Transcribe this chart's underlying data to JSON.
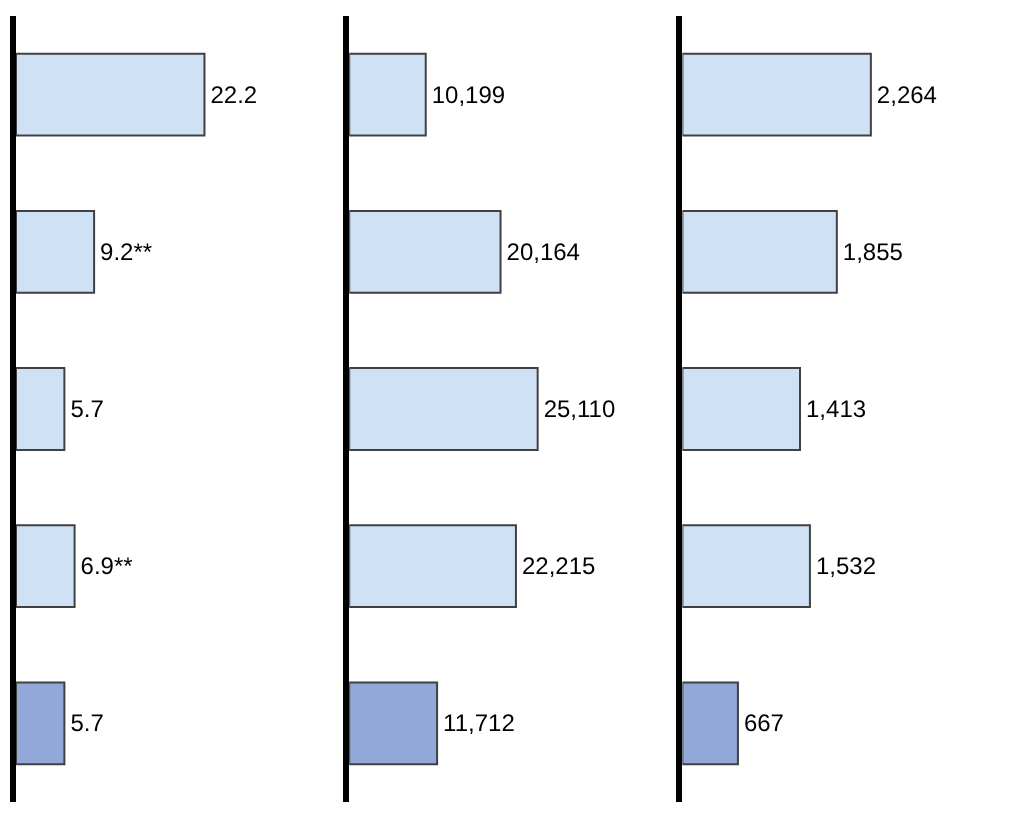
{
  "chart_data": [
    {
      "type": "bar",
      "orientation": "horizontal",
      "categories": [
        null,
        null,
        null,
        null,
        null
      ],
      "values": [
        22.2,
        9.2,
        5.7,
        6.9,
        5.7
      ],
      "value_labels": [
        "22.2",
        "9.2**",
        "5.7",
        "6.9**",
        "5.7"
      ],
      "colors": [
        "#cfe2f5",
        "#cfe2f5",
        "#cfe2f5",
        "#cfe2f5",
        "#91a8d8"
      ],
      "tick_labels": false
    },
    {
      "type": "bar",
      "orientation": "horizontal",
      "categories": [
        null,
        null,
        null,
        null,
        null
      ],
      "values": [
        10199,
        20164,
        25110,
        22215,
        11712
      ],
      "value_labels": [
        "10,199",
        "20,164",
        "25,110",
        "22,215",
        "11,712"
      ],
      "colors": [
        "#cfe2f5",
        "#cfe2f5",
        "#cfe2f5",
        "#cfe2f5",
        "#91a8d8"
      ],
      "tick_labels": false
    },
    {
      "type": "bar",
      "orientation": "horizontal",
      "categories": [
        null,
        null,
        null,
        null,
        null
      ],
      "values": [
        2264,
        1855,
        1413,
        1532,
        667
      ],
      "value_labels": [
        "2,264",
        "1,855",
        "1,413",
        "1,532",
        "667"
      ],
      "colors": [
        "#cfe2f5",
        "#cfe2f5",
        "#cfe2f5",
        "#cfe2f5",
        "#91a8d8"
      ],
      "tick_labels": false
    }
  ]
}
